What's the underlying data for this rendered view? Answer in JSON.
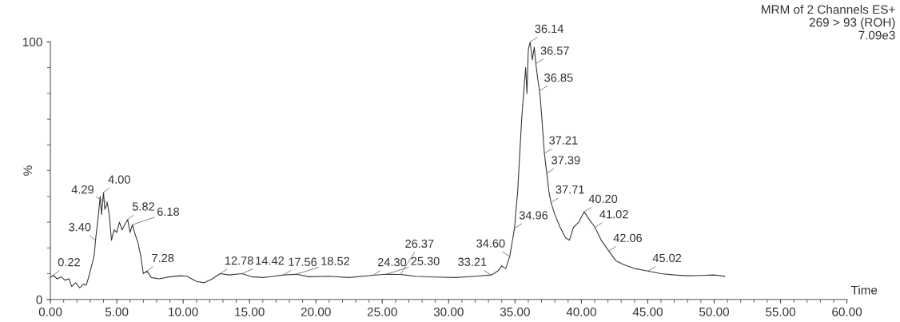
{
  "chart_data": {
    "type": "line",
    "xlabel": "Time",
    "ylabel": "%",
    "annotations": [
      "MRM of 2 Channels ES+",
      "269 > 93 (ROH)",
      "7.09e3",
      {
        "text": "0.22",
        "x": 0.22,
        "y": 9.4
      },
      {
        "text": "3.40",
        "x": 3.4,
        "y": 23
      },
      {
        "text": "4.00",
        "x": 4.0,
        "y": 41.5
      },
      {
        "text": "4.29",
        "x": 4.29,
        "y": 37.6
      },
      {
        "text": "5.82",
        "x": 5.82,
        "y": 31
      },
      {
        "text": "6.18",
        "x": 6.18,
        "y": 29
      },
      {
        "text": "7.28",
        "x": 7.28,
        "y": 11
      },
      {
        "text": "12.78",
        "x": 12.78,
        "y": 10
      },
      {
        "text": "14.42",
        "x": 14.42,
        "y": 10
      },
      {
        "text": "17.56",
        "x": 17.56,
        "y": 9.5
      },
      {
        "text": "18.52",
        "x": 18.52,
        "y": 9.8
      },
      {
        "text": "24.30",
        "x": 24.3,
        "y": 9.4
      },
      {
        "text": "25.30",
        "x": 25.3,
        "y": 9.8
      },
      {
        "text": "26.37",
        "x": 26.37,
        "y": 9.7
      },
      {
        "text": "33.21",
        "x": 33.21,
        "y": 9.5
      },
      {
        "text": "34.60",
        "x": 34.6,
        "y": 16.7
      },
      {
        "text": "34.96",
        "x": 34.96,
        "y": 27.6
      },
      {
        "text": "36.14",
        "x": 36.14,
        "y": 100
      },
      {
        "text": "36.57",
        "x": 36.57,
        "y": 91.5
      },
      {
        "text": "36.85",
        "x": 36.85,
        "y": 81
      },
      {
        "text": "37.21",
        "x": 37.21,
        "y": 56.7
      },
      {
        "text": "37.39",
        "x": 37.39,
        "y": 49
      },
      {
        "text": "37.71",
        "x": 37.71,
        "y": 37.6
      },
      {
        "text": "40.20",
        "x": 40.2,
        "y": 34
      },
      {
        "text": "41.02",
        "x": 41.02,
        "y": 28
      },
      {
        "text": "42.06",
        "x": 42.06,
        "y": 18.8
      },
      {
        "text": "45.02",
        "x": 45.02,
        "y": 11
      }
    ],
    "x": [
      0,
      0.22,
      0.5,
      0.8,
      1.1,
      1.4,
      1.6,
      1.9,
      2.2,
      2.5,
      2.7,
      2.9,
      3.1,
      3.3,
      3.4,
      3.6,
      3.75,
      3.85,
      4.0,
      4.1,
      4.29,
      4.45,
      4.6,
      4.8,
      5.0,
      5.2,
      5.4,
      5.6,
      5.82,
      6.0,
      6.18,
      6.4,
      6.6,
      6.8,
      7.0,
      7.28,
      7.6,
      8.2,
      9,
      9.8,
      10.3,
      11,
      11.6,
      12.2,
      12.78,
      13.5,
      14.42,
      15.2,
      16,
      16.8,
      17.56,
      18.52,
      19.5,
      21,
      22.5,
      24.3,
      25.3,
      26.37,
      27.5,
      29,
      30.5,
      32,
      33.21,
      33.7,
      34.0,
      34.3,
      34.6,
      34.96,
      35.2,
      35.5,
      35.8,
      35.9,
      36.0,
      36.14,
      36.3,
      36.45,
      36.57,
      36.7,
      36.85,
      37.0,
      37.21,
      37.39,
      37.55,
      37.71,
      38.0,
      38.4,
      38.8,
      39.1,
      39.4,
      39.8,
      40.2,
      40.6,
      41.02,
      41.5,
      42.06,
      42.6,
      43.2,
      44,
      45.02,
      46,
      47,
      48,
      49,
      50,
      50.8
    ],
    "series": [
      {
        "color": "#3a3a3a",
        "values": [
          8.5,
          9.4,
          8,
          8.8,
          7.5,
          8,
          5,
          6.5,
          4.5,
          6,
          5.5,
          9,
          13,
          17,
          23,
          32,
          40,
          33,
          41.5,
          35,
          37.6,
          32,
          23,
          27,
          26,
          30,
          27,
          29,
          31,
          26,
          29,
          25,
          22,
          17,
          10,
          11,
          8.5,
          8,
          8.8,
          9.2,
          9,
          7,
          6.5,
          8,
          10,
          9.5,
          10,
          8.8,
          8.5,
          9,
          9.5,
          9.8,
          8.8,
          9,
          8.5,
          9.4,
          9.8,
          9.7,
          9,
          8.7,
          8.5,
          9,
          9.5,
          11,
          13,
          12,
          16.7,
          27.6,
          42,
          70,
          90,
          80,
          97,
          100,
          93,
          98,
          91.5,
          86,
          81,
          72,
          56.7,
          49,
          42,
          37.6,
          33,
          28,
          24,
          23,
          28,
          30,
          34,
          31,
          28,
          23,
          18.8,
          15,
          13.5,
          12,
          11,
          10,
          9.5,
          9.2,
          9.3,
          9.5,
          9
        ]
      }
    ],
    "xlim": [
      0,
      60
    ],
    "ylim": [
      0,
      100
    ],
    "xticks": [
      {
        "value": 0,
        "label": "0.00"
      },
      {
        "value": 5,
        "label": "5.00"
      },
      {
        "value": 10,
        "label": "10.00"
      },
      {
        "value": 15,
        "label": "15.00"
      },
      {
        "value": 20,
        "label": "20.00"
      },
      {
        "value": 25,
        "label": "25.00"
      },
      {
        "value": 30,
        "label": "30.00"
      },
      {
        "value": 35,
        "label": "35.00"
      },
      {
        "value": 40,
        "label": "40.00"
      },
      {
        "value": 45,
        "label": "45.00"
      },
      {
        "value": 50,
        "label": "50.00"
      },
      {
        "value": 55,
        "label": "55.00"
      },
      {
        "value": 60,
        "label": "60.00"
      }
    ],
    "yticks": [
      0,
      100
    ],
    "grid": false,
    "legend": false,
    "marker": "none",
    "line_style": "solid"
  }
}
